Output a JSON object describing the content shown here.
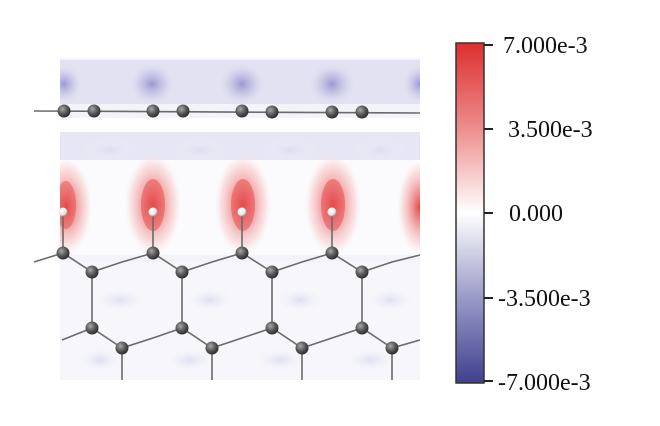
{
  "colorbar": {
    "ticks": [
      "7.000e-3",
      "3.500e-3",
      "0.000",
      "-3.500e-3",
      "-7.000e-3"
    ],
    "values": [
      0.007,
      0.0035,
      0,
      -0.0035,
      -0.007
    ],
    "max_color": "#dd2f2f",
    "mid_color": "#ffffff",
    "min_color": "#3f3f8f"
  },
  "colors": {
    "atom_carbon": "#5b5b5b",
    "atom_hydrogen": "#f2f2f2",
    "bond": "#6a6a6a",
    "positive_accumulation": "#dd2f2f",
    "negative_depletion": "#4a4ab0"
  }
}
